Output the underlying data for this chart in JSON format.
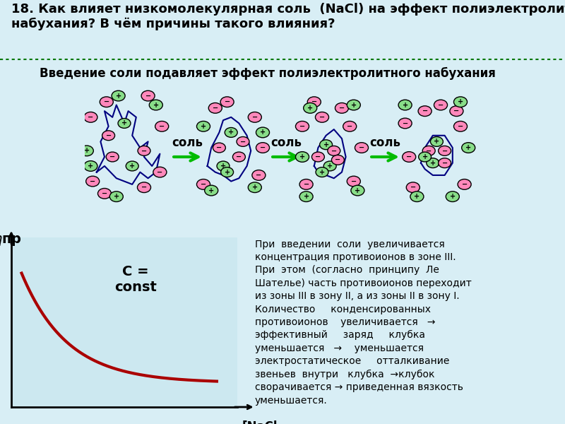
{
  "bg_color": "#d8eef5",
  "title_text": "18. Как влияет низкомолекулярная соль  (NaCl) на эффект полиэлектролитного\nнабухания? В чём причины такого влияния?",
  "subtitle_text": "Введение соли подавляет эффект полиэлектролитного набухания",
  "diagram_bg": "#cce8f0",
  "arrow_color": "#00bb00",
  "salt_label": "соль",
  "plot_bg": "#cce8f0",
  "curve_color": "#aa0000",
  "ylabel": "ηпр",
  "xlabel": "[NaCl\n]",
  "const_label": "C =\nconst",
  "description": "При  введении  соли  увеличивается\nконцентрация противоионов в зоне III.\nПри  этом  (согласно  принципу  Ле\nШателье) часть противоионов переходит\nиз зоны III в зону II, а из зоны II в зону I.\nКоличество     конденсированных\nпротивоионов    увеличивается   →\nэффективный     заряд     клубка\nуменьшается   →    уменьшается\nэлектростатическое     отталкивание\nзвеньев  внутри   клубка  →клубок\nсворачивается → приведенная вязкость\nуменьшается.",
  "separator_color": "#007700",
  "title_fontsize": 13,
  "subtitle_fontsize": 12,
  "desc_fontsize": 10
}
